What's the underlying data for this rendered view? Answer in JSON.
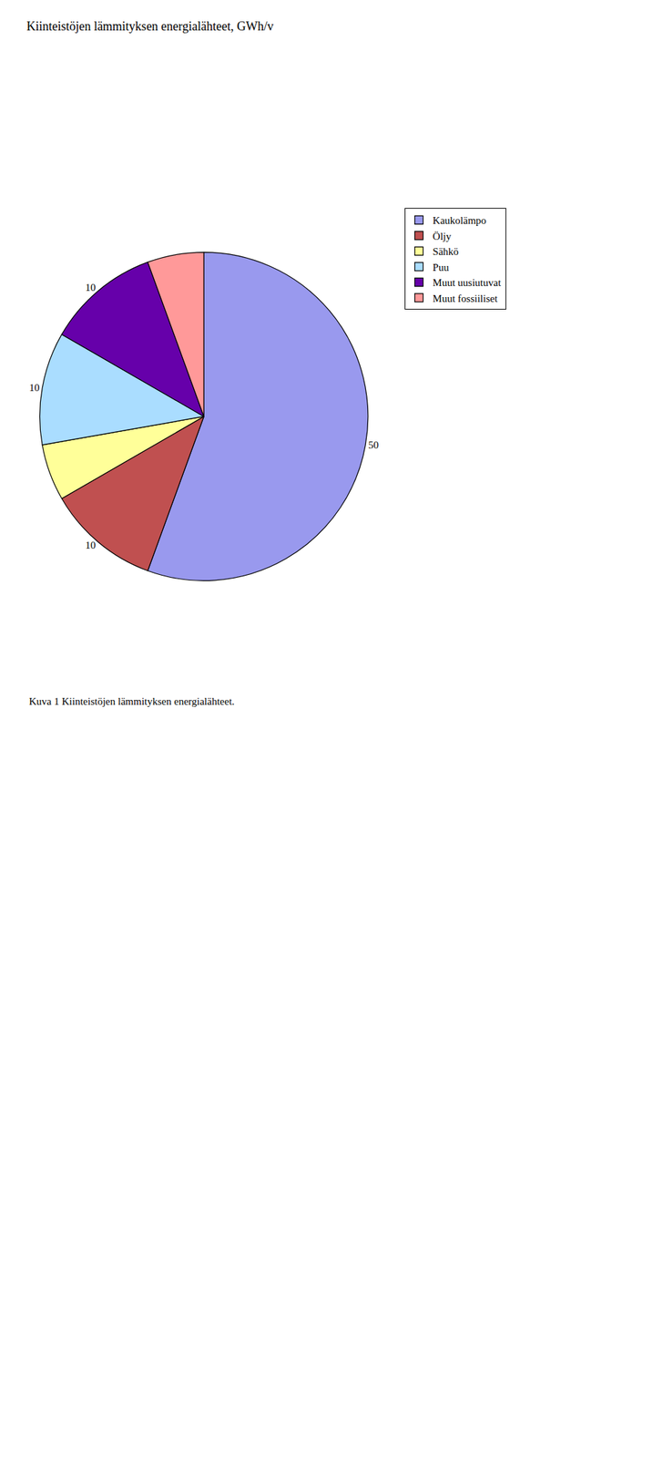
{
  "chart_data": {
    "type": "pie",
    "title": "Kiinteistöjen lämmityksen energialähteet, GWh/v",
    "categories": [
      "Kaukolämpo",
      "Öljy",
      "Sähkö",
      "Puu",
      "Muut uusiutuvat",
      "Muut fossiiliset"
    ],
    "values": [
      50,
      10,
      5,
      10,
      10,
      5
    ],
    "value_labels": [
      "50",
      "10",
      null,
      "10",
      "10",
      null
    ],
    "colors": [
      "#9999EE",
      "#C05050",
      "#FFFF99",
      "#AADDFF",
      "#6600AA",
      "#FF9999"
    ],
    "data_labels": true,
    "legend": "upper right",
    "annotations": [
      "Kuva 1 Kiinteistöjen lämmityksen energialähteet."
    ]
  }
}
